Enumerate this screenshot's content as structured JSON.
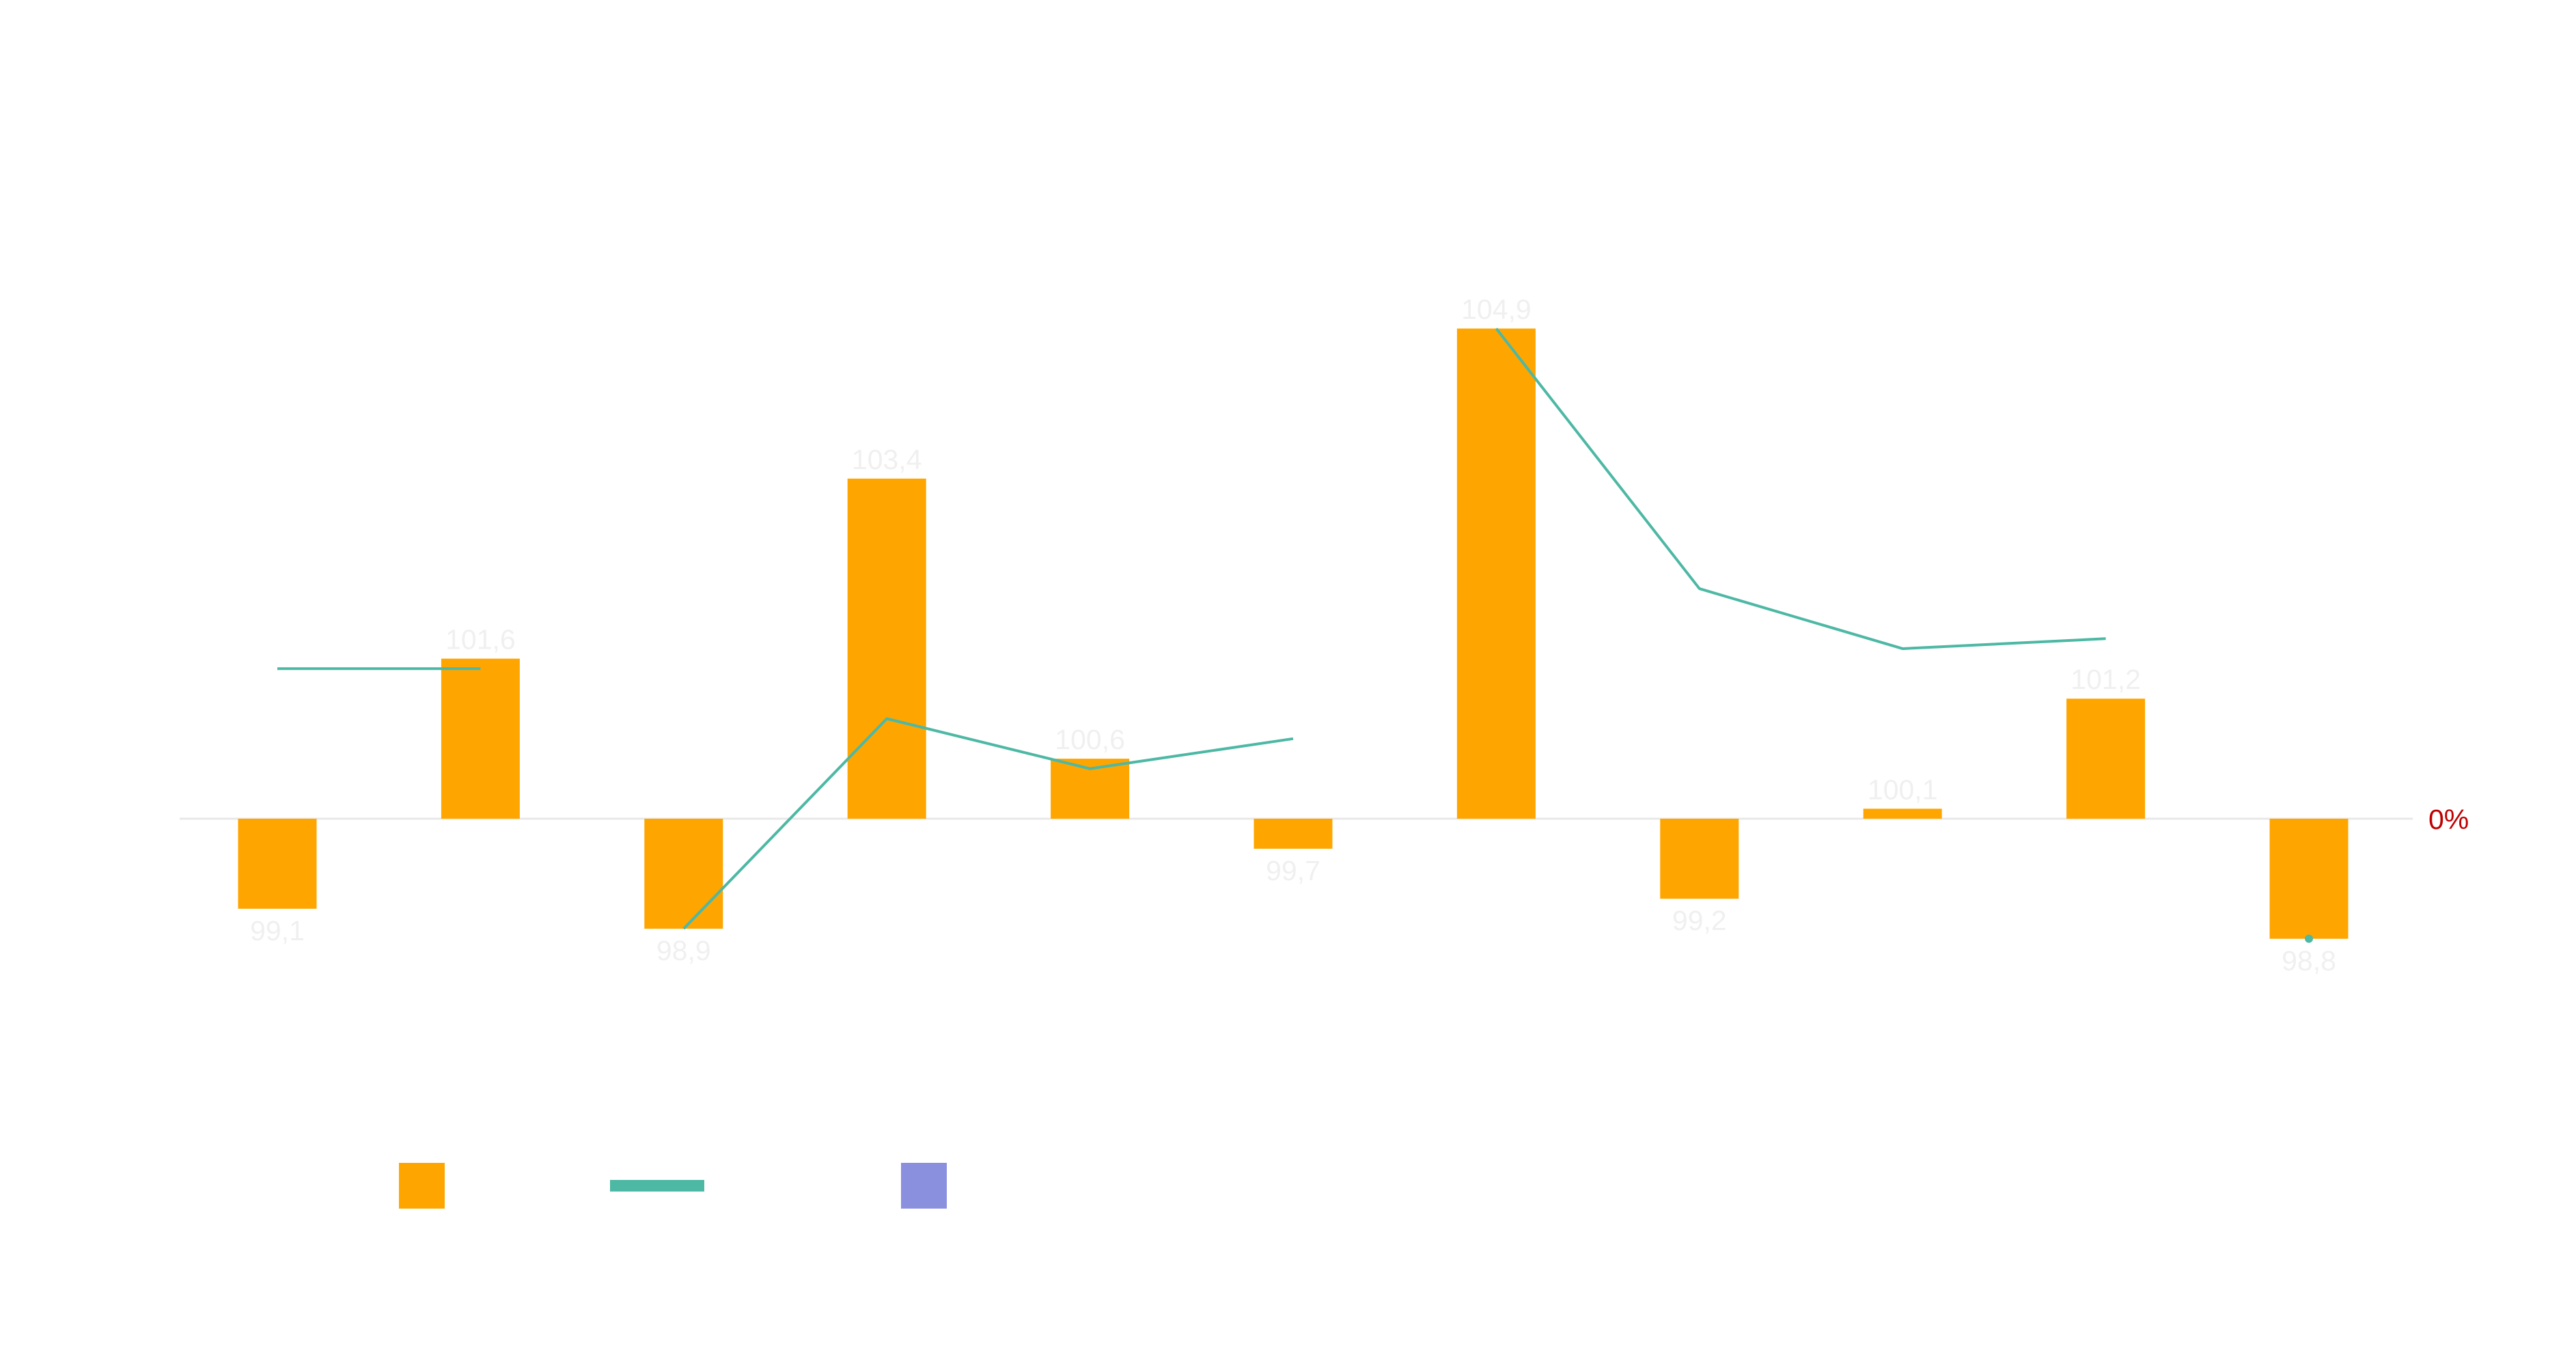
{
  "chart_data": {
    "type": "bar",
    "categories": [
      "",
      "",
      "",
      "",
      "",
      "",
      "",
      "",
      "",
      "",
      ""
    ],
    "baseline_value": 100,
    "ylim": [
      97.5,
      106.5
    ],
    "series": [
      {
        "kind": "bar",
        "values": [
          99.1,
          101.6,
          98.9,
          103.4,
          100.6,
          99.7,
          104.9,
          99.2,
          100.1,
          101.2,
          98.8
        ],
        "labels": [
          "99,1",
          "101,6",
          "98,9",
          "103,4",
          "100,6",
          "99,7",
          "104,9",
          "99,2",
          "100,1",
          "101,2",
          "98,8"
        ],
        "color": "#FFA500"
      },
      {
        "kind": "line",
        "segments": [
          [
            {
              "i": 0,
              "v": 101.5
            },
            {
              "i": 1,
              "v": 101.5
            }
          ],
          [
            {
              "i": 2,
              "v": 98.9
            },
            {
              "i": 3,
              "v": 101.0
            },
            {
              "i": 4,
              "v": 100.5
            },
            {
              "i": 5,
              "v": 100.8
            }
          ],
          [
            {
              "i": 6,
              "v": 104.9
            },
            {
              "i": 7,
              "v": 102.3
            },
            {
              "i": 8,
              "v": 101.7
            },
            {
              "i": 9,
              "v": 101.8
            }
          ]
        ],
        "points": [
          {
            "i": 10,
            "v": 98.8
          }
        ],
        "color": "#4DB8A4"
      },
      {
        "kind": "legend-only",
        "color": "#8A8FDE"
      }
    ],
    "right_axis": {
      "tick_label": "0%",
      "color": "#C00000"
    },
    "label_color": "#F0F0F0",
    "zero_line_color": "#E8E8E8",
    "grid": false,
    "legend_position": "bottom-left",
    "title": "",
    "xlabel": "",
    "ylabel": ""
  }
}
